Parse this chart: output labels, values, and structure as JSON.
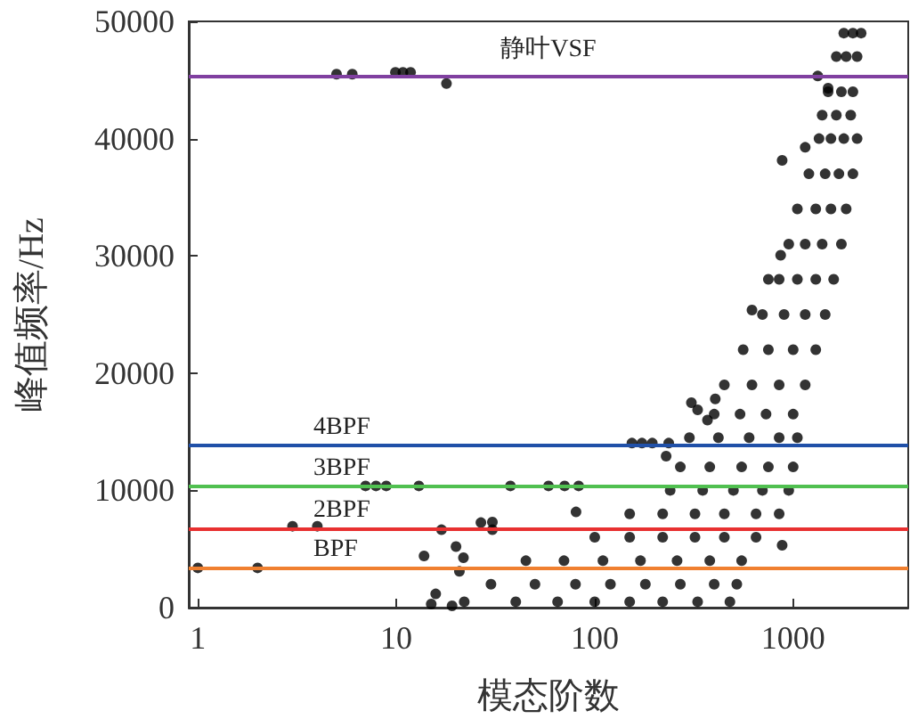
{
  "chart_data": {
    "type": "scatter",
    "xlabel": "模态阶数",
    "ylabel": "峰值频率/Hz",
    "log": "x",
    "xlim": [
      0.9,
      3800
    ],
    "xticks": [
      1,
      10,
      100,
      1000
    ],
    "ylim": [
      0,
      50000
    ],
    "yticks": [
      0,
      10000,
      20000,
      30000,
      40000,
      50000
    ],
    "grid": false,
    "marker": "circle",
    "series": [
      {
        "color": "#000000",
        "x": [
          1,
          2,
          3,
          4,
          5,
          6,
          9.9,
          10.8,
          11.8,
          17.9,
          7,
          7.9,
          8.9,
          13,
          37.6,
          58.5,
          70.5,
          83,
          80.5,
          16.9,
          26.7,
          30.5,
          30.5,
          13.8,
          20,
          21.8,
          20.8,
          15.8,
          19.1,
          15,
          154,
          173,
          195,
          236,
          229,
          307,
          330,
          405,
          370,
          880,
          880,
          620,
          750,
          865,
          1150,
          1330,
          1500,
          1800,
          2000,
          2200,
          1650,
          1850,
          2100,
          1500,
          1750,
          2000,
          1400,
          1650,
          1950,
          1350,
          1550,
          1800,
          2100,
          1200,
          1450,
          1700,
          2000,
          1050,
          1300,
          1550,
          1850,
          950,
          1150,
          1400,
          1750,
          850,
          1050,
          1300,
          1600,
          700,
          900,
          1150,
          1450,
          560,
          750,
          1000,
          1300,
          450,
          620,
          850,
          1150,
          400,
          540,
          730,
          1000,
          300,
          420,
          600,
          850,
          1050,
          270,
          380,
          550,
          750,
          1000,
          240,
          350,
          500,
          700,
          950,
          150,
          220,
          320,
          450,
          650,
          850,
          100,
          150,
          220,
          320,
          450,
          650,
          45,
          70,
          110,
          170,
          260,
          380,
          550,
          30,
          50,
          80,
          120,
          180,
          270,
          400,
          520,
          22,
          40,
          65,
          100,
          150,
          220,
          330,
          480
        ],
        "values": [
          3390,
          3390,
          6940,
          6940,
          45500,
          45500,
          45650,
          45650,
          45650,
          44700,
          10380,
          10380,
          10380,
          10380,
          10380,
          10380,
          10380,
          10380,
          8160,
          6640,
          7250,
          6640,
          7300,
          4410,
          5210,
          4260,
          3090,
          1170,
          150,
          300,
          14030,
          14030,
          14030,
          14030,
          12920,
          17480,
          16870,
          17800,
          16000,
          38150,
          5320,
          25380,
          28000,
          30050,
          39260,
          45340,
          44300,
          49000,
          49000,
          49000,
          47000,
          47000,
          47000,
          44000,
          44000,
          44000,
          42000,
          42000,
          42000,
          40000,
          40000,
          40000,
          40000,
          37000,
          37000,
          37000,
          37000,
          34000,
          34000,
          34000,
          34000,
          31000,
          31000,
          31000,
          31000,
          28000,
          28000,
          28000,
          28000,
          25000,
          25000,
          25000,
          25000,
          22000,
          22000,
          22000,
          22000,
          19000,
          19000,
          19000,
          19000,
          16500,
          16500,
          16500,
          16500,
          14500,
          14500,
          14500,
          14500,
          14500,
          12000,
          12000,
          12000,
          12000,
          12000,
          10000,
          10000,
          10000,
          10000,
          10000,
          8000,
          8000,
          8000,
          8000,
          8000,
          8000,
          6000,
          6000,
          6000,
          6000,
          6000,
          6000,
          4000,
          4000,
          4000,
          4000,
          4000,
          4000,
          4000,
          2000,
          2000,
          2000,
          2000,
          2000,
          2000,
          2000,
          2000,
          500,
          500,
          500,
          500,
          500,
          500,
          500,
          500
        ]
      }
    ],
    "ref_lines": [
      {
        "axis": "y",
        "value": 45300,
        "label": "静叶VSF",
        "color": "#8040a0"
      },
      {
        "axis": "y",
        "value": 13800,
        "label": "4BPF",
        "color": "#2050a8"
      },
      {
        "axis": "y",
        "value": 10350,
        "label": "3BPF",
        "color": "#50c050"
      },
      {
        "axis": "y",
        "value": 6750,
        "label": "2BPF",
        "color": "#e83030"
      },
      {
        "axis": "y",
        "value": 3400,
        "label": "BPF",
        "color": "#f08030"
      }
    ]
  }
}
